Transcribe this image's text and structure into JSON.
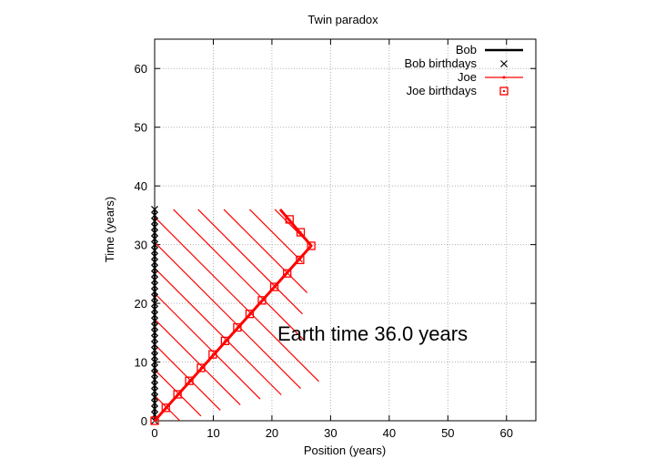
{
  "chart_data": {
    "type": "line",
    "title": "Twin paradox",
    "xlabel": "Position (years)",
    "ylabel": "Time (years)",
    "xlim": [
      0,
      65
    ],
    "ylim": [
      0,
      65
    ],
    "xticks": [
      0,
      10,
      20,
      30,
      40,
      50,
      60
    ],
    "yticks": [
      0,
      10,
      20,
      30,
      40,
      50,
      60
    ],
    "grid": true,
    "legend_position": "top-right",
    "annotation": "Earth time 36.0 years",
    "series": [
      {
        "name": "Bob",
        "kind": "line",
        "color": "#000000",
        "x": [
          0,
          0
        ],
        "y": [
          0,
          36
        ]
      },
      {
        "name": "Bob birthdays",
        "kind": "marker-x",
        "color": "#000000",
        "x": [
          0,
          0,
          0,
          0,
          0,
          0,
          0,
          0,
          0,
          0,
          0,
          0,
          0,
          0,
          0,
          0,
          0,
          0,
          0,
          0,
          0,
          0,
          0,
          0,
          0,
          0,
          0,
          0,
          0,
          0,
          0,
          0,
          0,
          0,
          0,
          0,
          0
        ],
        "y": [
          0,
          1,
          2,
          3,
          4,
          5,
          6,
          7,
          8,
          9,
          10,
          11,
          12,
          13,
          14,
          15,
          16,
          17,
          18,
          19,
          20,
          21,
          22,
          23,
          24,
          25,
          26,
          27,
          28,
          29,
          30,
          31,
          32,
          33,
          34,
          35,
          36
        ]
      },
      {
        "name": "Joe",
        "kind": "line",
        "color": "#ff0000",
        "x": [
          0,
          26.7,
          21.4
        ],
        "y": [
          0,
          29.8,
          36
        ]
      },
      {
        "name": "Joe birthdays",
        "kind": "marker-square",
        "color": "#ff0000",
        "x": [
          0,
          1.9,
          3.9,
          5.9,
          7.9,
          9.9,
          12.0,
          14.1,
          16.2,
          18.3,
          20.4,
          22.6,
          24.8,
          26.7,
          24.9,
          23.0
        ],
        "y": [
          0,
          2.2,
          4.5,
          6.8,
          9.0,
          11.3,
          13.6,
          15.9,
          18.2,
          20.5,
          22.8,
          25.1,
          27.4,
          29.8,
          32.1,
          34.3
        ]
      },
      {
        "name": "",
        "kind": "signal-lines",
        "color": "#ff0000",
        "segments": [
          {
            "x": [
              0,
              4.3
            ],
            "y": [
              4.3,
              0
            ]
          },
          {
            "x": [
              0,
              7.9
            ],
            "y": [
              8.7,
              0.8
            ]
          },
          {
            "x": [
              0,
              11.2
            ],
            "y": [
              13.0,
              1.8
            ]
          },
          {
            "x": [
              0,
              14.6
            ],
            "y": [
              17.3,
              2.7
            ]
          },
          {
            "x": [
              0,
              18.0
            ],
            "y": [
              21.7,
              3.7
            ]
          },
          {
            "x": [
              0,
              21.6
            ],
            "y": [
              26.0,
              4.4
            ]
          },
          {
            "x": [
              0,
              24.9
            ],
            "y": [
              30.4,
              5.5
            ]
          },
          {
            "x": [
              0,
              28.0
            ],
            "y": [
              34.7,
              6.7
            ]
          },
          {
            "x": [
              3.2,
              25.4
            ],
            "y": [
              36.0,
              13.8
            ]
          },
          {
            "x": [
              7.4,
              25.2
            ],
            "y": [
              36.0,
              18.2
            ]
          },
          {
            "x": [
              11.8,
              26.0
            ],
            "y": [
              36.0,
              21.8
            ]
          },
          {
            "x": [
              16.2,
              25.2
            ],
            "y": [
              36.0,
              27.0
            ]
          },
          {
            "x": [
              20.5,
              26.6
            ],
            "y": [
              36.0,
              29.9
            ]
          }
        ]
      }
    ]
  }
}
